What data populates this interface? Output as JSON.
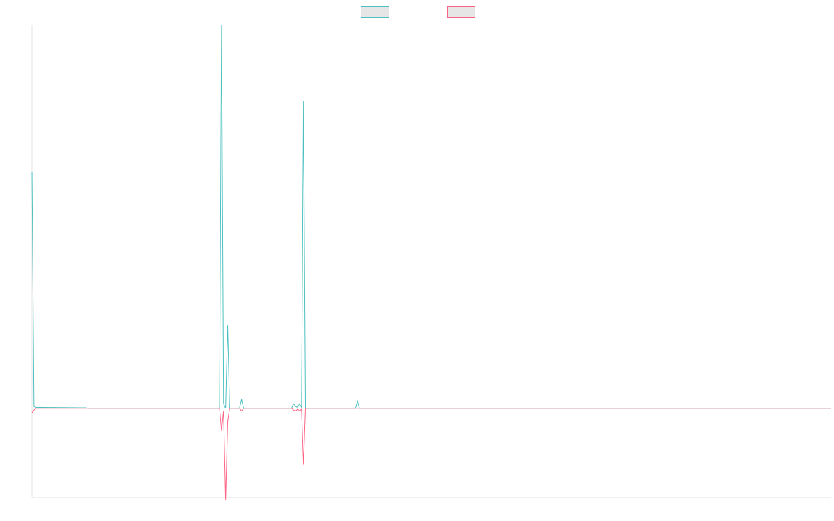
{
  "chart_data": {
    "type": "line",
    "title": "",
    "xlabel": "",
    "ylabel": "",
    "grid": false,
    "legend_position": "top-center",
    "legend_fill": "#e6e6e6",
    "axis_color": "#e3e3e3",
    "x_count": 401,
    "xlim": [
      0,
      400
    ],
    "ylim": [
      -100,
      430
    ],
    "baseline": 0,
    "series": [
      {
        "color": "#4cc0c0",
        "points": [
          [
            0,
            265
          ],
          [
            1,
            2
          ],
          [
            2,
            1
          ],
          [
            27,
            0.5
          ],
          [
            28,
            0
          ],
          [
            94,
            0
          ],
          [
            95,
            430
          ],
          [
            96,
            5
          ],
          [
            97,
            0
          ],
          [
            98,
            93
          ],
          [
            99,
            0
          ],
          [
            104,
            0
          ],
          [
            105,
            10
          ],
          [
            106,
            0
          ],
          [
            130,
            0
          ],
          [
            131,
            5
          ],
          [
            132,
            2
          ],
          [
            133,
            1
          ],
          [
            134,
            5
          ],
          [
            135,
            1
          ],
          [
            136,
            345
          ],
          [
            137,
            0
          ],
          [
            162,
            0
          ],
          [
            163,
            8
          ],
          [
            164,
            0
          ],
          [
            400,
            0
          ]
        ]
      },
      {
        "color": "#ff6384",
        "points": [
          [
            0,
            -5
          ],
          [
            1,
            -2
          ],
          [
            2,
            0
          ],
          [
            94,
            0
          ],
          [
            95,
            -25
          ],
          [
            96,
            -3
          ],
          [
            97,
            -103
          ],
          [
            98,
            -15
          ],
          [
            99,
            0
          ],
          [
            104,
            0
          ],
          [
            105,
            -3
          ],
          [
            106,
            0
          ],
          [
            130,
            0
          ],
          [
            131,
            -2
          ],
          [
            132,
            -3
          ],
          [
            133,
            -1
          ],
          [
            134,
            -3
          ],
          [
            135,
            -1
          ],
          [
            136,
            -63
          ],
          [
            137,
            0
          ],
          [
            400,
            0
          ]
        ]
      }
    ]
  }
}
